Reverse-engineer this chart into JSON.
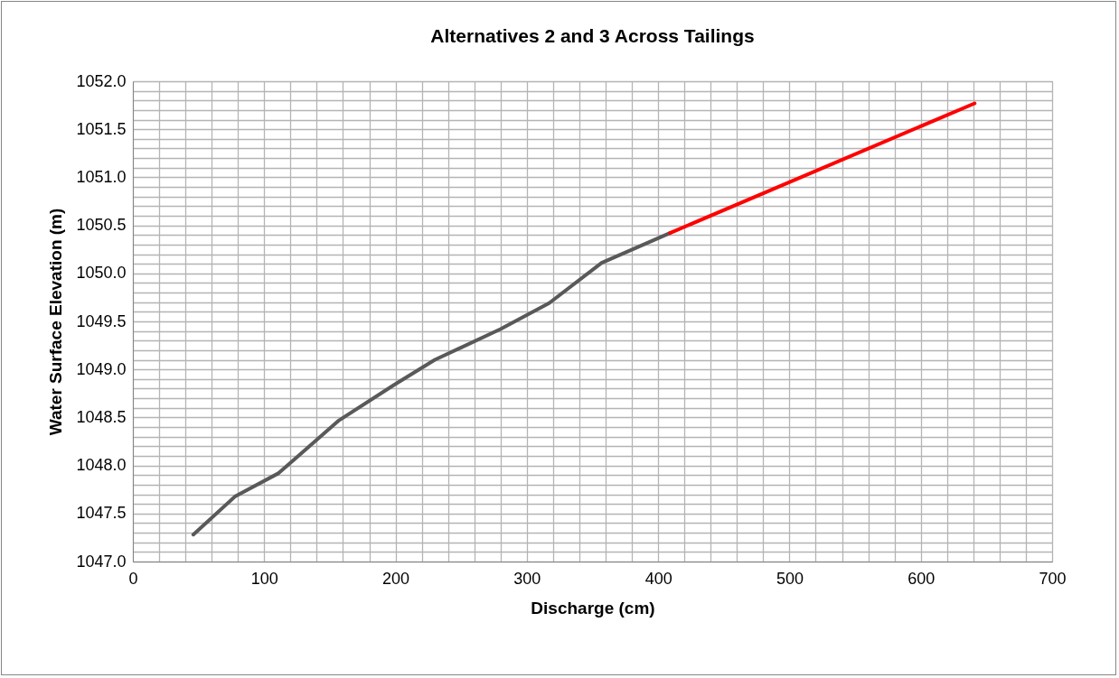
{
  "chart_data": {
    "type": "line",
    "title": "Alternatives 2 and 3 Across Tailings",
    "xlabel": "Discharge (cm)",
    "ylabel": "Water Surface Elevation (m)",
    "series": [
      {
        "color": "#595959",
        "x": [
          46,
          78,
          111,
          157,
          199,
          230,
          280,
          317,
          357,
          409
        ],
        "values": [
          1047.28,
          1047.68,
          1047.92,
          1048.47,
          1048.84,
          1049.1,
          1049.42,
          1049.69,
          1050.11,
          1050.42
        ]
      },
      {
        "color": "#ff0000",
        "x": [
          409,
          641
        ],
        "values": [
          1050.42,
          1051.77
        ]
      }
    ],
    "xlim": [
      0,
      700
    ],
    "xticks": [
      0,
      {
        "value": 20,
        "label": null
      },
      {
        "value": 40,
        "label": null
      },
      {
        "value": 60,
        "label": null
      },
      {
        "value": 80,
        "label": null
      },
      100,
      {
        "value": 120,
        "label": null
      },
      {
        "value": 140,
        "label": null
      },
      {
        "value": 160,
        "label": null
      },
      {
        "value": 180,
        "label": null
      },
      200,
      {
        "value": 220,
        "label": null
      },
      {
        "value": 240,
        "label": null
      },
      {
        "value": 260,
        "label": null
      },
      {
        "value": 280,
        "label": null
      },
      300,
      {
        "value": 320,
        "label": null
      },
      {
        "value": 340,
        "label": null
      },
      {
        "value": 360,
        "label": null
      },
      {
        "value": 380,
        "label": null
      },
      400,
      {
        "value": 420,
        "label": null
      },
      {
        "value": 440,
        "label": null
      },
      {
        "value": 460,
        "label": null
      },
      {
        "value": 480,
        "label": null
      },
      500,
      {
        "value": 520,
        "label": null
      },
      {
        "value": 540,
        "label": null
      },
      {
        "value": 560,
        "label": null
      },
      {
        "value": 580,
        "label": null
      },
      600,
      {
        "value": 620,
        "label": null
      },
      {
        "value": 640,
        "label": null
      },
      {
        "value": 660,
        "label": null
      },
      {
        "value": 680,
        "label": null
      },
      700
    ],
    "ylim": [
      1047,
      1052
    ],
    "yticks": [
      {
        "value": 1047,
        "label": "1047.0"
      },
      {
        "value": 1047.1,
        "label": null
      },
      {
        "value": 1047.2,
        "label": null
      },
      {
        "value": 1047.3,
        "label": null
      },
      {
        "value": 1047.4,
        "label": null
      },
      {
        "value": 1047.5,
        "label": "1047.5"
      },
      {
        "value": 1047.6,
        "label": null
      },
      {
        "value": 1047.7,
        "label": null
      },
      {
        "value": 1047.8,
        "label": null
      },
      {
        "value": 1047.9,
        "label": null
      },
      {
        "value": 1048,
        "label": "1048.0"
      },
      {
        "value": 1048.1,
        "label": null
      },
      {
        "value": 1048.2,
        "label": null
      },
      {
        "value": 1048.3,
        "label": null
      },
      {
        "value": 1048.4,
        "label": null
      },
      {
        "value": 1048.5,
        "label": "1048.5"
      },
      {
        "value": 1048.6,
        "label": null
      },
      {
        "value": 1048.7,
        "label": null
      },
      {
        "value": 1048.8,
        "label": null
      },
      {
        "value": 1048.9,
        "label": null
      },
      {
        "value": 1049,
        "label": "1049.0"
      },
      {
        "value": 1049.1,
        "label": null
      },
      {
        "value": 1049.2,
        "label": null
      },
      {
        "value": 1049.3,
        "label": null
      },
      {
        "value": 1049.4,
        "label": null
      },
      {
        "value": 1049.5,
        "label": "1049.5"
      },
      {
        "value": 1049.6,
        "label": null
      },
      {
        "value": 1049.7,
        "label": null
      },
      {
        "value": 1049.8,
        "label": null
      },
      {
        "value": 1049.9,
        "label": null
      },
      {
        "value": 1050,
        "label": "1050.0"
      },
      {
        "value": 1050.1,
        "label": null
      },
      {
        "value": 1050.2,
        "label": null
      },
      {
        "value": 1050.3,
        "label": null
      },
      {
        "value": 1050.4,
        "label": null
      },
      {
        "value": 1050.5,
        "label": "1050.5"
      },
      {
        "value": 1050.6,
        "label": null
      },
      {
        "value": 1050.7,
        "label": null
      },
      {
        "value": 1050.8,
        "label": null
      },
      {
        "value": 1050.9,
        "label": null
      },
      {
        "value": 1051,
        "label": "1051.0"
      },
      {
        "value": 1051.1,
        "label": null
      },
      {
        "value": 1051.2,
        "label": null
      },
      {
        "value": 1051.3,
        "label": null
      },
      {
        "value": 1051.4,
        "label": null
      },
      {
        "value": 1051.5,
        "label": "1051.5"
      },
      {
        "value": 1051.6,
        "label": null
      },
      {
        "value": 1051.7,
        "label": null
      },
      {
        "value": 1051.8,
        "label": null
      },
      {
        "value": 1051.9,
        "label": null
      },
      {
        "value": 1052,
        "label": "1052.0"
      }
    ],
    "grid": true,
    "legend": false,
    "marker": "none",
    "line_style": "solid"
  }
}
